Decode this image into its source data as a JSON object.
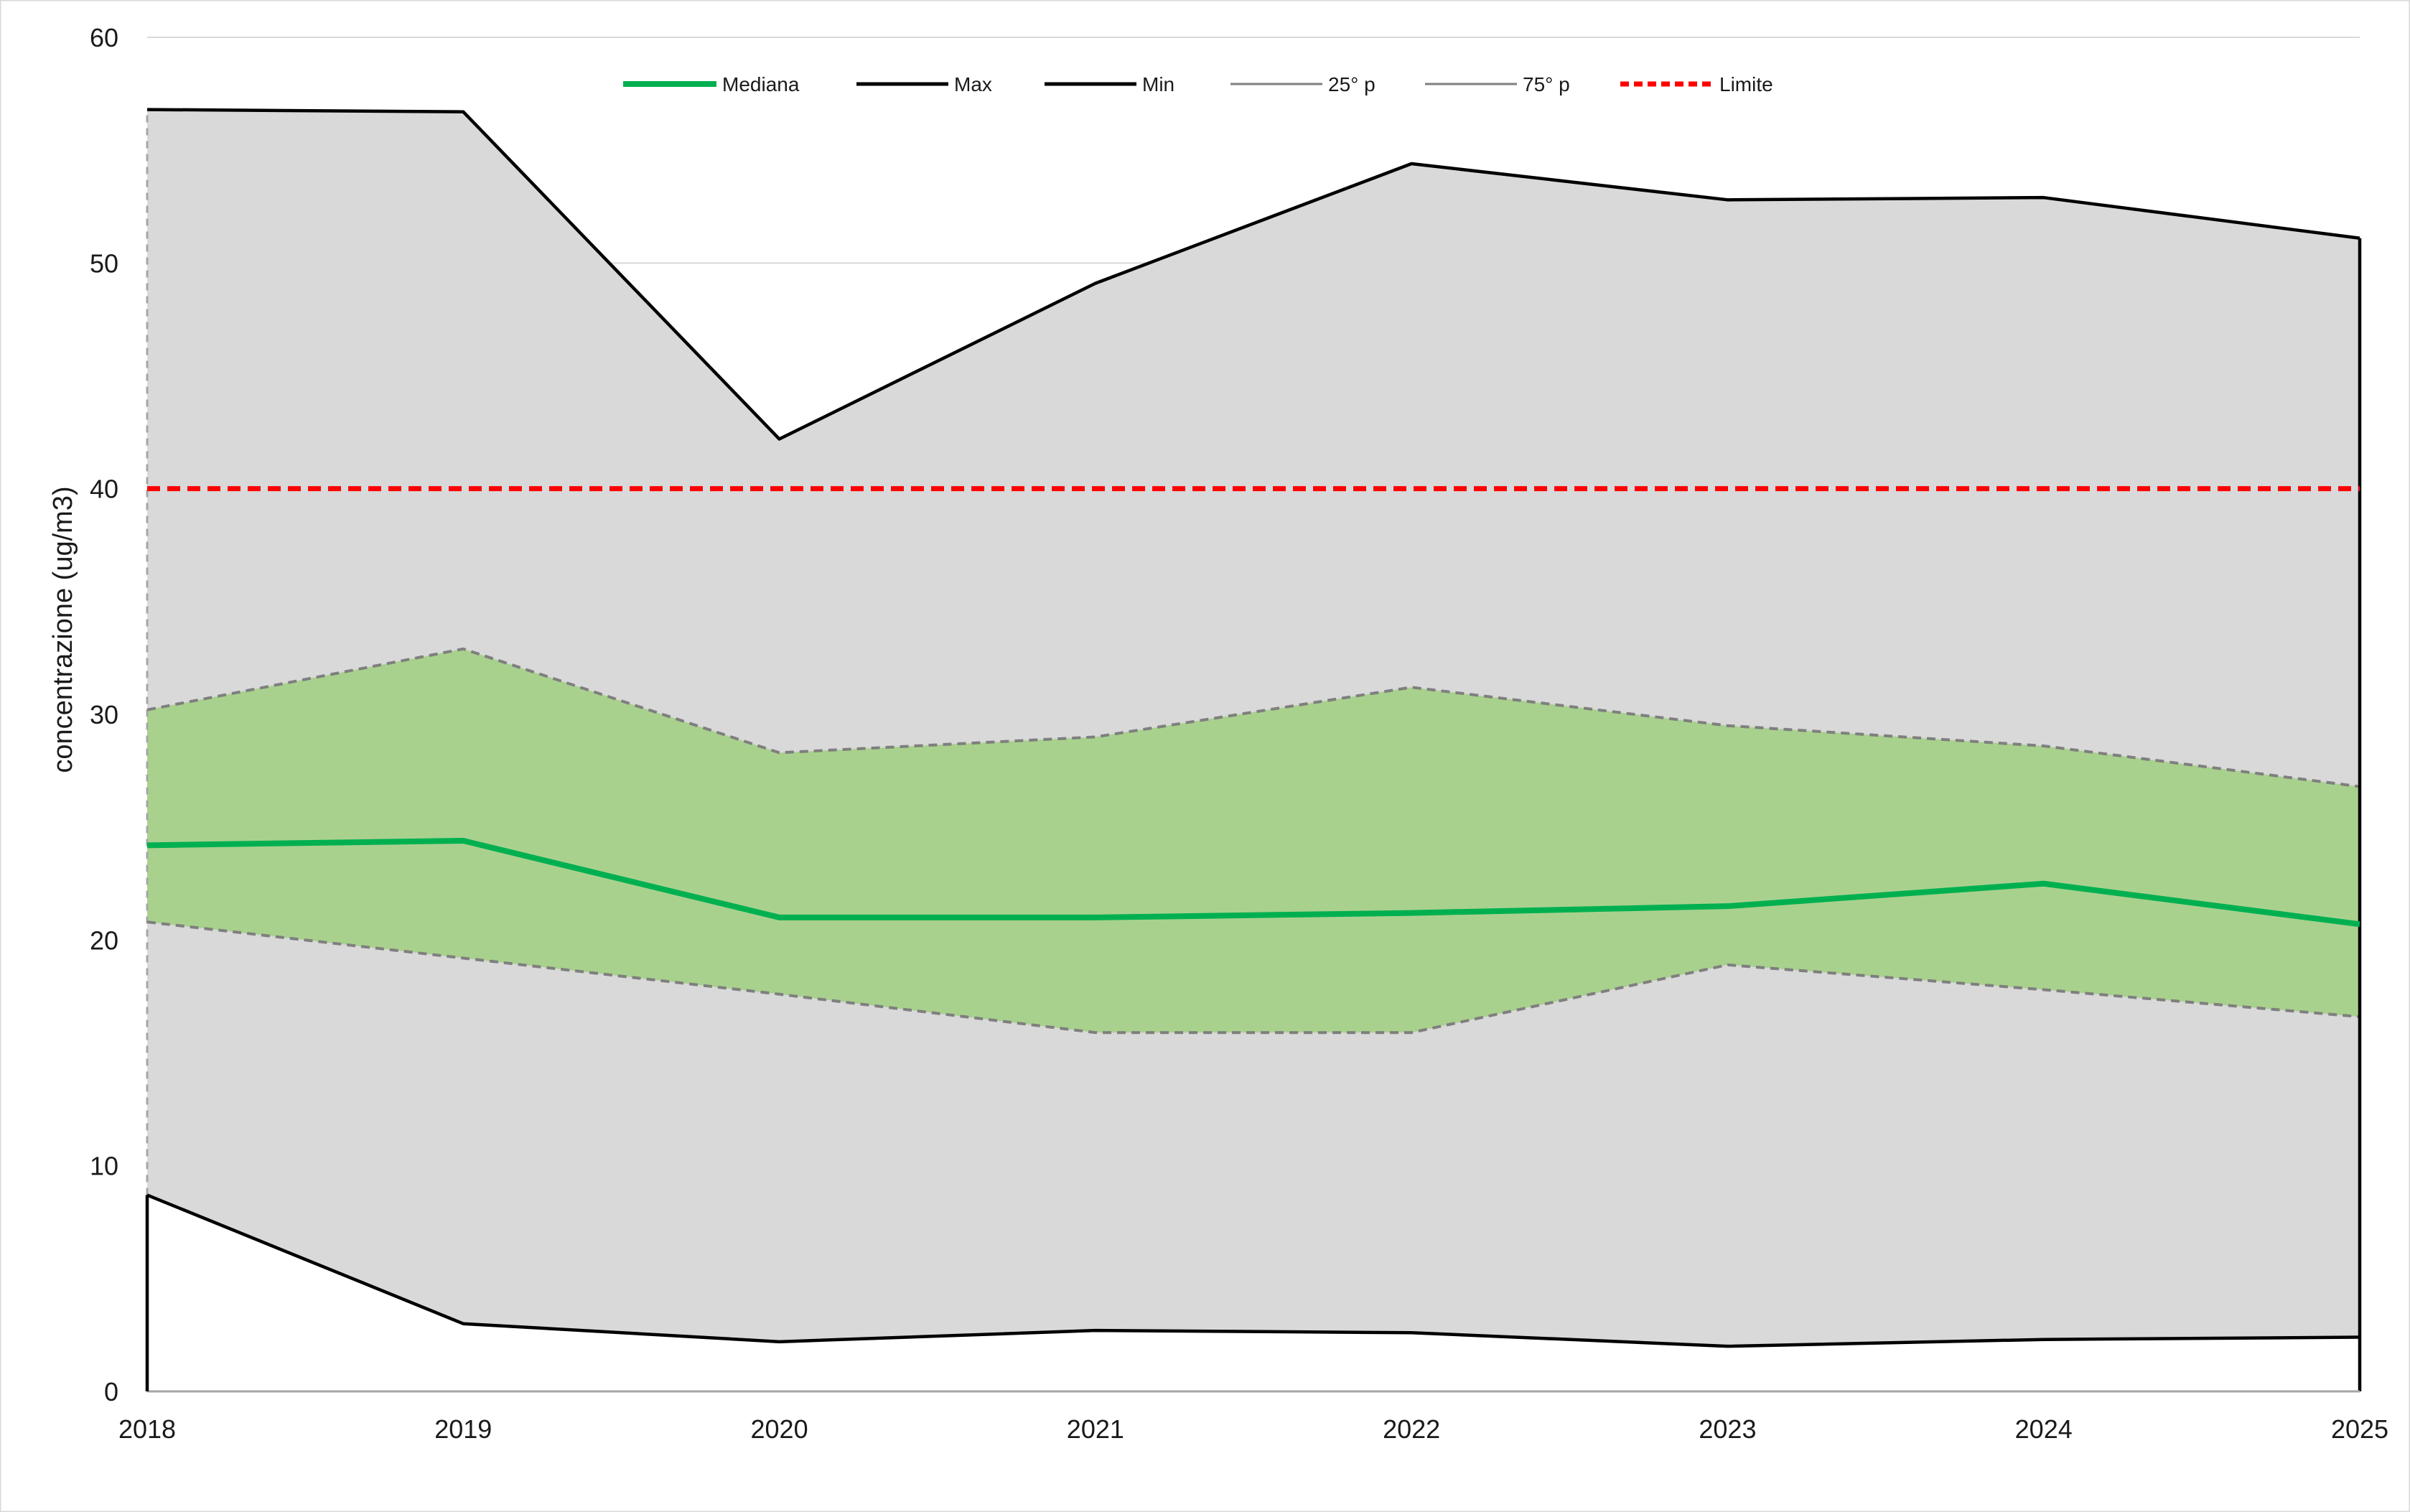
{
  "chart_data": {
    "type": "area",
    "title": "",
    "xlabel": "",
    "ylabel": "concentrazione (ug/m3)",
    "x": [
      "2018",
      "2019",
      "2020",
      "2021",
      "2022",
      "2023",
      "2024",
      "2025"
    ],
    "ylim": [
      0,
      60
    ],
    "yticks": [
      0,
      10,
      20,
      30,
      40,
      50,
      60
    ],
    "grid": true,
    "legend_position": "top-center",
    "series": [
      {
        "name": "Mediana",
        "values": [
          24.2,
          24.4,
          21.0,
          21.0,
          21.2,
          21.5,
          22.5,
          20.7
        ],
        "color": "#00b050",
        "style": "solid"
      },
      {
        "name": "Max",
        "values": [
          56.8,
          56.7,
          42.2,
          49.1,
          54.4,
          52.8,
          52.9,
          51.1
        ],
        "color": "#000000",
        "style": "solid"
      },
      {
        "name": "Min",
        "values": [
          8.7,
          3.0,
          2.2,
          2.7,
          2.6,
          2.0,
          2.3,
          2.4
        ],
        "color": "#000000",
        "style": "solid"
      },
      {
        "name": "25° p",
        "values": [
          20.8,
          19.2,
          17.6,
          15.9,
          15.9,
          18.9,
          17.8,
          16.6
        ],
        "color": "#7f7f7f",
        "style": "dashed"
      },
      {
        "name": "75° p",
        "values": [
          30.2,
          32.9,
          28.3,
          29.0,
          31.2,
          29.5,
          28.6,
          26.8
        ],
        "color": "#7f7f7f",
        "style": "dashed"
      },
      {
        "name": "Limite",
        "values": [
          40,
          40,
          40,
          40,
          40,
          40,
          40,
          40
        ],
        "color": "#ff0000",
        "style": "dashed"
      }
    ],
    "fills": {
      "min_max_band": "#d9d9d9",
      "p25_p75_band": "#a9d18e"
    }
  }
}
